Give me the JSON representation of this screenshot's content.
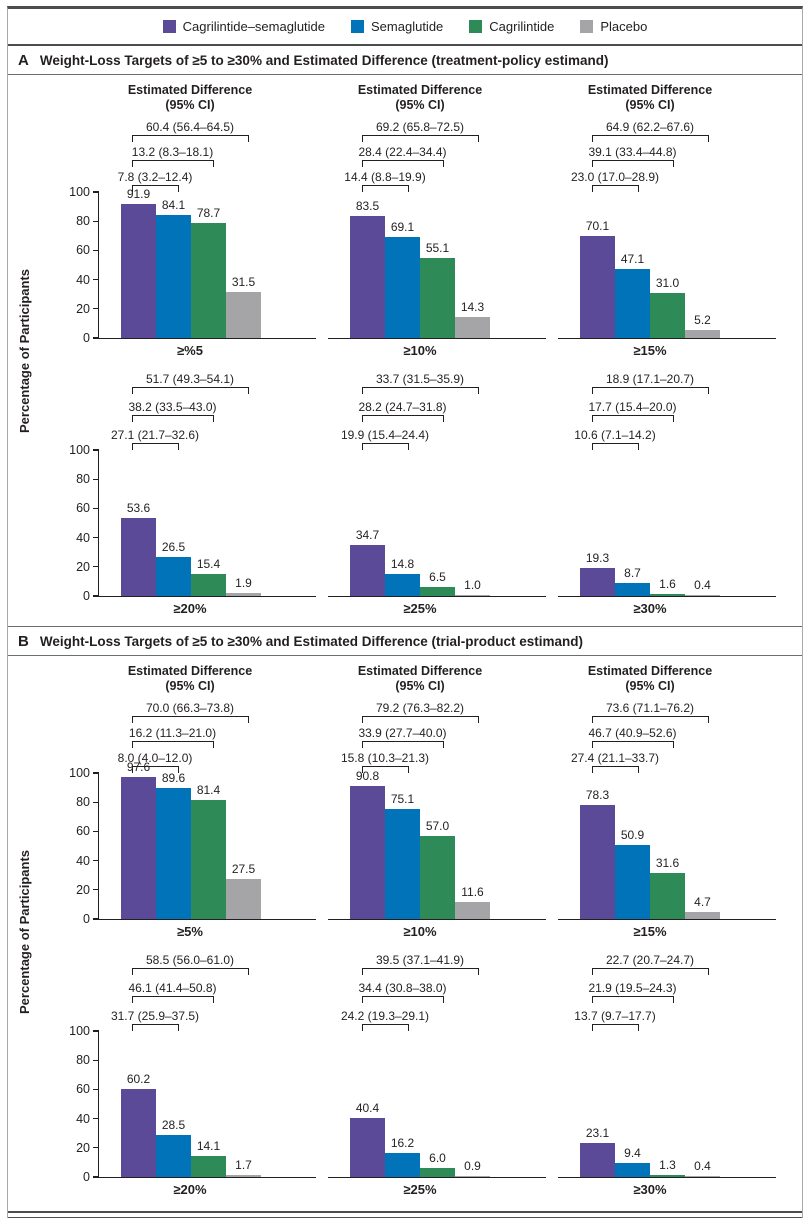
{
  "legend": {
    "items": [
      {
        "label": "Cagrilintide–semaglutide",
        "color": "#5a4a97"
      },
      {
        "label": "Semaglutide",
        "color": "#0073b9"
      },
      {
        "label": "Cagrilintide",
        "color": "#2e8a57"
      },
      {
        "label": "Placebo",
        "color": "#a5a5a7"
      }
    ]
  },
  "chart_data": [
    {
      "type": "bar",
      "panel": "A",
      "title": "Weight-Loss Targets of ≥5 to ≥30% and Estimated Difference (treatment-policy estimand)",
      "ylabel": "Percentage of Participants",
      "ylim": [
        0,
        100
      ],
      "yticks": [
        100,
        80,
        60,
        40,
        20,
        0
      ],
      "grid": false,
      "legend_position": "top",
      "diff_header": [
        "Estimated Difference",
        "(95% CI)"
      ],
      "categories": [
        "≥%5",
        "≥10%",
        "≥15%",
        "≥20%",
        "≥25%",
        "≥30%"
      ],
      "series": [
        {
          "name": "Cagrilintide–semaglutide",
          "values": [
            91.9,
            83.5,
            70.1,
            53.6,
            34.7,
            19.3
          ]
        },
        {
          "name": "Semaglutide",
          "values": [
            84.1,
            69.1,
            47.1,
            26.5,
            14.8,
            8.7
          ]
        },
        {
          "name": "Cagrilintide",
          "values": [
            78.7,
            55.1,
            31.0,
            15.4,
            6.5,
            1.6
          ]
        },
        {
          "name": "Placebo",
          "values": [
            31.5,
            14.3,
            5.2,
            1.9,
            1.0,
            0.4
          ]
        }
      ],
      "estimated_differences": [
        {
          "category": "≥%5",
          "labels": [
            "60.4 (56.4–64.5)",
            "13.2 (8.3–18.1)",
            "7.8 (3.2–12.4)"
          ]
        },
        {
          "category": "≥10%",
          "labels": [
            "69.2 (65.8–72.5)",
            "28.4 (22.4–34.4)",
            "14.4 (8.8–19.9)"
          ]
        },
        {
          "category": "≥15%",
          "labels": [
            "64.9 (62.2–67.6)",
            "39.1 (33.4–44.8)",
            "23.0 (17.0–28.9)"
          ]
        },
        {
          "category": "≥20%",
          "labels": [
            "51.7 (49.3–54.1)",
            "38.2 (33.5–43.0)",
            "27.1 (21.7–32.6)"
          ]
        },
        {
          "category": "≥25%",
          "labels": [
            "33.7 (31.5–35.9)",
            "28.2 (24.7–31.8)",
            "19.9 (15.4–24.4)"
          ]
        },
        {
          "category": "≥30%",
          "labels": [
            "18.9 (17.1–20.7)",
            "17.7 (15.4–20.0)",
            "10.6 (7.1–14.2)"
          ]
        }
      ]
    },
    {
      "type": "bar",
      "panel": "B",
      "title": "Weight-Loss Targets of ≥5 to ≥30% and Estimated Difference (trial-product estimand)",
      "ylabel": "Percentage of Participants",
      "ylim": [
        0,
        100
      ],
      "yticks": [
        100,
        80,
        60,
        40,
        20,
        0
      ],
      "grid": false,
      "legend_position": "top",
      "diff_header": [
        "Estimated Difference",
        "(95% CI)"
      ],
      "categories": [
        "≥5%",
        "≥10%",
        "≥15%",
        "≥20%",
        "≥25%",
        "≥30%"
      ],
      "series": [
        {
          "name": "Cagrilintide–semaglutide",
          "values": [
            97.6,
            90.8,
            78.3,
            60.2,
            40.4,
            23.1
          ]
        },
        {
          "name": "Semaglutide",
          "values": [
            89.6,
            75.1,
            50.9,
            28.5,
            16.2,
            9.4
          ]
        },
        {
          "name": "Cagrilintide",
          "values": [
            81.4,
            57.0,
            31.6,
            14.1,
            6.0,
            1.3
          ]
        },
        {
          "name": "Placebo",
          "values": [
            27.5,
            11.6,
            4.7,
            1.7,
            0.9,
            0.4
          ]
        }
      ],
      "estimated_differences": [
        {
          "category": "≥5%",
          "labels": [
            "70.0 (66.3–73.8)",
            "16.2 (11.3–21.0)",
            "8.0 (4.0–12.0)"
          ]
        },
        {
          "category": "≥10%",
          "labels": [
            "79.2 (76.3–82.2)",
            "33.9 (27.7–40.0)",
            "15.8 (10.3–21.3)"
          ]
        },
        {
          "category": "≥15%",
          "labels": [
            "73.6 (71.1–76.2)",
            "46.7 (40.9–52.6)",
            "27.4 (21.1–33.7)"
          ]
        },
        {
          "category": "≥20%",
          "labels": [
            "58.5 (56.0–61.0)",
            "46.1 (41.4–50.8)",
            "31.7 (25.9–37.5)"
          ]
        },
        {
          "category": "≥25%",
          "labels": [
            "39.5 (37.1–41.9)",
            "34.4 (30.8–38.0)",
            "24.2 (19.3–29.1)"
          ]
        },
        {
          "category": "≥30%",
          "labels": [
            "22.7 (20.7–24.7)",
            "21.9 (19.5–24.3)",
            "13.7 (9.7–17.7)"
          ]
        }
      ]
    }
  ]
}
